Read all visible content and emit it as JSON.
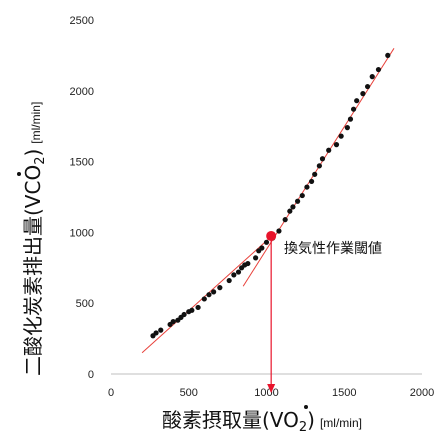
{
  "chart_data": {
    "type": "scatter",
    "title": "",
    "xlabel": {
      "main": "酸素摂取量",
      "symbol": "(VO",
      "sub": "2",
      "close": ")",
      "unit": "[ml/min]"
    },
    "ylabel": {
      "main": "二酸化炭素排出量",
      "symbol": "(VCO",
      "sub": "2",
      "close": ")",
      "unit": "[ml/min]"
    },
    "xlim": [
      0,
      2000
    ],
    "ylim": [
      0,
      2500
    ],
    "xticks": [
      0,
      500,
      1000,
      1500,
      2000
    ],
    "yticks": [
      0,
      500,
      1000,
      1500,
      2000,
      2500
    ],
    "grid": false,
    "points": [
      [
        270,
        270
      ],
      [
        290,
        290
      ],
      [
        320,
        310
      ],
      [
        380,
        350
      ],
      [
        400,
        370
      ],
      [
        430,
        380
      ],
      [
        450,
        400
      ],
      [
        470,
        420
      ],
      [
        500,
        440
      ],
      [
        520,
        450
      ],
      [
        560,
        470
      ],
      [
        600,
        530
      ],
      [
        630,
        560
      ],
      [
        660,
        580
      ],
      [
        700,
        610
      ],
      [
        760,
        660
      ],
      [
        790,
        700
      ],
      [
        820,
        720
      ],
      [
        840,
        750
      ],
      [
        860,
        770
      ],
      [
        880,
        780
      ],
      [
        930,
        820
      ],
      [
        950,
        870
      ],
      [
        970,
        890
      ],
      [
        1000,
        930
      ],
      [
        1040,
        960
      ],
      [
        1080,
        1010
      ],
      [
        1120,
        1090
      ],
      [
        1150,
        1150
      ],
      [
        1170,
        1180
      ],
      [
        1200,
        1220
      ],
      [
        1230,
        1260
      ],
      [
        1260,
        1320
      ],
      [
        1290,
        1360
      ],
      [
        1310,
        1410
      ],
      [
        1340,
        1470
      ],
      [
        1360,
        1520
      ],
      [
        1400,
        1580
      ],
      [
        1450,
        1620
      ],
      [
        1480,
        1680
      ],
      [
        1520,
        1740
      ],
      [
        1540,
        1800
      ],
      [
        1560,
        1870
      ],
      [
        1580,
        1930
      ],
      [
        1620,
        1980
      ],
      [
        1650,
        2030
      ],
      [
        1680,
        2100
      ],
      [
        1720,
        2150
      ],
      [
        1780,
        2250
      ]
    ],
    "regression_lines": [
      {
        "x": [
          200,
          1050
        ],
        "y": [
          150,
          990
        ]
      },
      {
        "x": [
          850,
          1820
        ],
        "y": [
          620,
          2300
        ]
      }
    ],
    "threshold": {
      "x": 1030,
      "y": 975,
      "label": "換気性作業閾値"
    },
    "colors": {
      "points": "#111111",
      "lines": "#e8413b",
      "threshold_marker": "#e8132b",
      "arrow": "#e8132b"
    }
  }
}
